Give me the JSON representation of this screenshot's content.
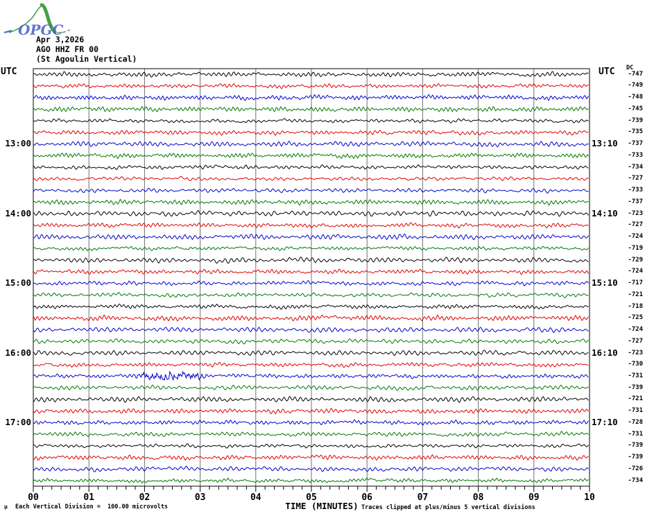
{
  "logo": {
    "text": "OPGC"
  },
  "header": {
    "date": "Apr 3,2026",
    "station": "AGO HHZ FR 00",
    "subtitle": "(St Agoulin Vertical)"
  },
  "labels": {
    "utc_left": "UTC",
    "utc_right": "UTC",
    "dc_header": "DC"
  },
  "xaxis": {
    "title": "TIME (MINUTES)",
    "tick_labels": [
      "00",
      "01",
      "02",
      "03",
      "04",
      "05",
      "06",
      "07",
      "08",
      "09",
      "10"
    ]
  },
  "footer": {
    "mu_mark": "μ",
    "division_note": "Each Vertical Division =  100.00 microvolts",
    "clip_note": "Traces clipped at plus/minus 5 vertical divisions"
  },
  "colors": {
    "background": "#ffffff",
    "border": "#000000",
    "grid": "#707070",
    "logo_green": "#46a046",
    "logo_blue": "#4a63c8",
    "palette": {
      "black": "#000000",
      "red": "#e00000",
      "blue": "#0000cc",
      "green": "#007700"
    }
  },
  "chart_data": {
    "type": "line",
    "subtype": "helicorder_seismogram",
    "title": "AGO HHZ FR 00 (St Agoulin Vertical)",
    "date": "Apr 3,2026",
    "xlabel": "TIME (MINUTES)",
    "x_range_minutes": [
      0,
      10
    ],
    "x_major_tick_minutes": 1,
    "x_minor_ticks_per_minute": 6,
    "minutes_per_row": 10,
    "vertical_division_microvolts": 100.0,
    "clip_divisions": 5,
    "color_cycle": [
      "black",
      "red",
      "blue",
      "green"
    ],
    "left_hour_labels": [
      "13:00",
      "14:00",
      "15:00",
      "16:00",
      "17:00"
    ],
    "right_hour_labels": [
      "13:10",
      "14:10",
      "15:10",
      "16:10",
      "17:10"
    ],
    "event_annotation": {
      "row_utc_start": "16:20",
      "minute_range": [
        1.75,
        3.15
      ],
      "note": "higher-amplitude high-frequency burst on blue 16:20 trace"
    },
    "rows": [
      {
        "utc_start": "12:00",
        "utc_end": "12:10",
        "color": "black",
        "dc_microvolts": -747
      },
      {
        "utc_start": "12:10",
        "utc_end": "12:20",
        "color": "red",
        "dc_microvolts": -749
      },
      {
        "utc_start": "12:20",
        "utc_end": "12:30",
        "color": "blue",
        "dc_microvolts": -748
      },
      {
        "utc_start": "12:30",
        "utc_end": "12:40",
        "color": "green",
        "dc_microvolts": -745
      },
      {
        "utc_start": "12:40",
        "utc_end": "12:50",
        "color": "black",
        "dc_microvolts": -739
      },
      {
        "utc_start": "12:50",
        "utc_end": "13:00",
        "color": "red",
        "dc_microvolts": -735
      },
      {
        "utc_start": "13:00",
        "utc_end": "13:10",
        "color": "blue",
        "dc_microvolts": -737,
        "left_label": "13:00",
        "right_label": "13:10"
      },
      {
        "utc_start": "13:10",
        "utc_end": "13:20",
        "color": "green",
        "dc_microvolts": -733
      },
      {
        "utc_start": "13:20",
        "utc_end": "13:30",
        "color": "black",
        "dc_microvolts": -734
      },
      {
        "utc_start": "13:30",
        "utc_end": "13:40",
        "color": "red",
        "dc_microvolts": -727
      },
      {
        "utc_start": "13:40",
        "utc_end": "13:50",
        "color": "blue",
        "dc_microvolts": -733
      },
      {
        "utc_start": "13:50",
        "utc_end": "14:00",
        "color": "green",
        "dc_microvolts": -737
      },
      {
        "utc_start": "14:00",
        "utc_end": "14:10",
        "color": "black",
        "dc_microvolts": -723,
        "left_label": "14:00",
        "right_label": "14:10"
      },
      {
        "utc_start": "14:10",
        "utc_end": "14:20",
        "color": "red",
        "dc_microvolts": -727
      },
      {
        "utc_start": "14:20",
        "utc_end": "14:30",
        "color": "blue",
        "dc_microvolts": -724
      },
      {
        "utc_start": "14:30",
        "utc_end": "14:40",
        "color": "green",
        "dc_microvolts": -719
      },
      {
        "utc_start": "14:40",
        "utc_end": "14:50",
        "color": "black",
        "dc_microvolts": -729
      },
      {
        "utc_start": "14:50",
        "utc_end": "15:00",
        "color": "red",
        "dc_microvolts": -724
      },
      {
        "utc_start": "15:00",
        "utc_end": "15:10",
        "color": "blue",
        "dc_microvolts": -717,
        "left_label": "15:00",
        "right_label": "15:10"
      },
      {
        "utc_start": "15:10",
        "utc_end": "15:20",
        "color": "green",
        "dc_microvolts": -721
      },
      {
        "utc_start": "15:20",
        "utc_end": "15:30",
        "color": "black",
        "dc_microvolts": -718
      },
      {
        "utc_start": "15:30",
        "utc_end": "15:40",
        "color": "red",
        "dc_microvolts": -725
      },
      {
        "utc_start": "15:40",
        "utc_end": "15:50",
        "color": "blue",
        "dc_microvolts": -724
      },
      {
        "utc_start": "15:50",
        "utc_end": "16:00",
        "color": "green",
        "dc_microvolts": -727
      },
      {
        "utc_start": "16:00",
        "utc_end": "16:10",
        "color": "black",
        "dc_microvolts": -723,
        "left_label": "16:00",
        "right_label": "16:10"
      },
      {
        "utc_start": "16:10",
        "utc_end": "16:20",
        "color": "red",
        "dc_microvolts": -730
      },
      {
        "utc_start": "16:20",
        "utc_end": "16:30",
        "color": "blue",
        "dc_microvolts": -731,
        "event": true
      },
      {
        "utc_start": "16:30",
        "utc_end": "16:40",
        "color": "green",
        "dc_microvolts": -739
      },
      {
        "utc_start": "16:40",
        "utc_end": "16:50",
        "color": "black",
        "dc_microvolts": -721
      },
      {
        "utc_start": "16:50",
        "utc_end": "17:00",
        "color": "red",
        "dc_microvolts": -731
      },
      {
        "utc_start": "17:00",
        "utc_end": "17:10",
        "color": "blue",
        "dc_microvolts": -728,
        "left_label": "17:00",
        "right_label": "17:10"
      },
      {
        "utc_start": "17:10",
        "utc_end": "17:20",
        "color": "green",
        "dc_microvolts": -731
      },
      {
        "utc_start": "17:20",
        "utc_end": "17:30",
        "color": "black",
        "dc_microvolts": -739
      },
      {
        "utc_start": "17:30",
        "utc_end": "17:40",
        "color": "red",
        "dc_microvolts": -739
      },
      {
        "utc_start": "17:40",
        "utc_end": "17:50",
        "color": "blue",
        "dc_microvolts": -726
      },
      {
        "utc_start": "17:50",
        "utc_end": "18:00",
        "color": "green",
        "dc_microvolts": -734
      }
    ]
  }
}
